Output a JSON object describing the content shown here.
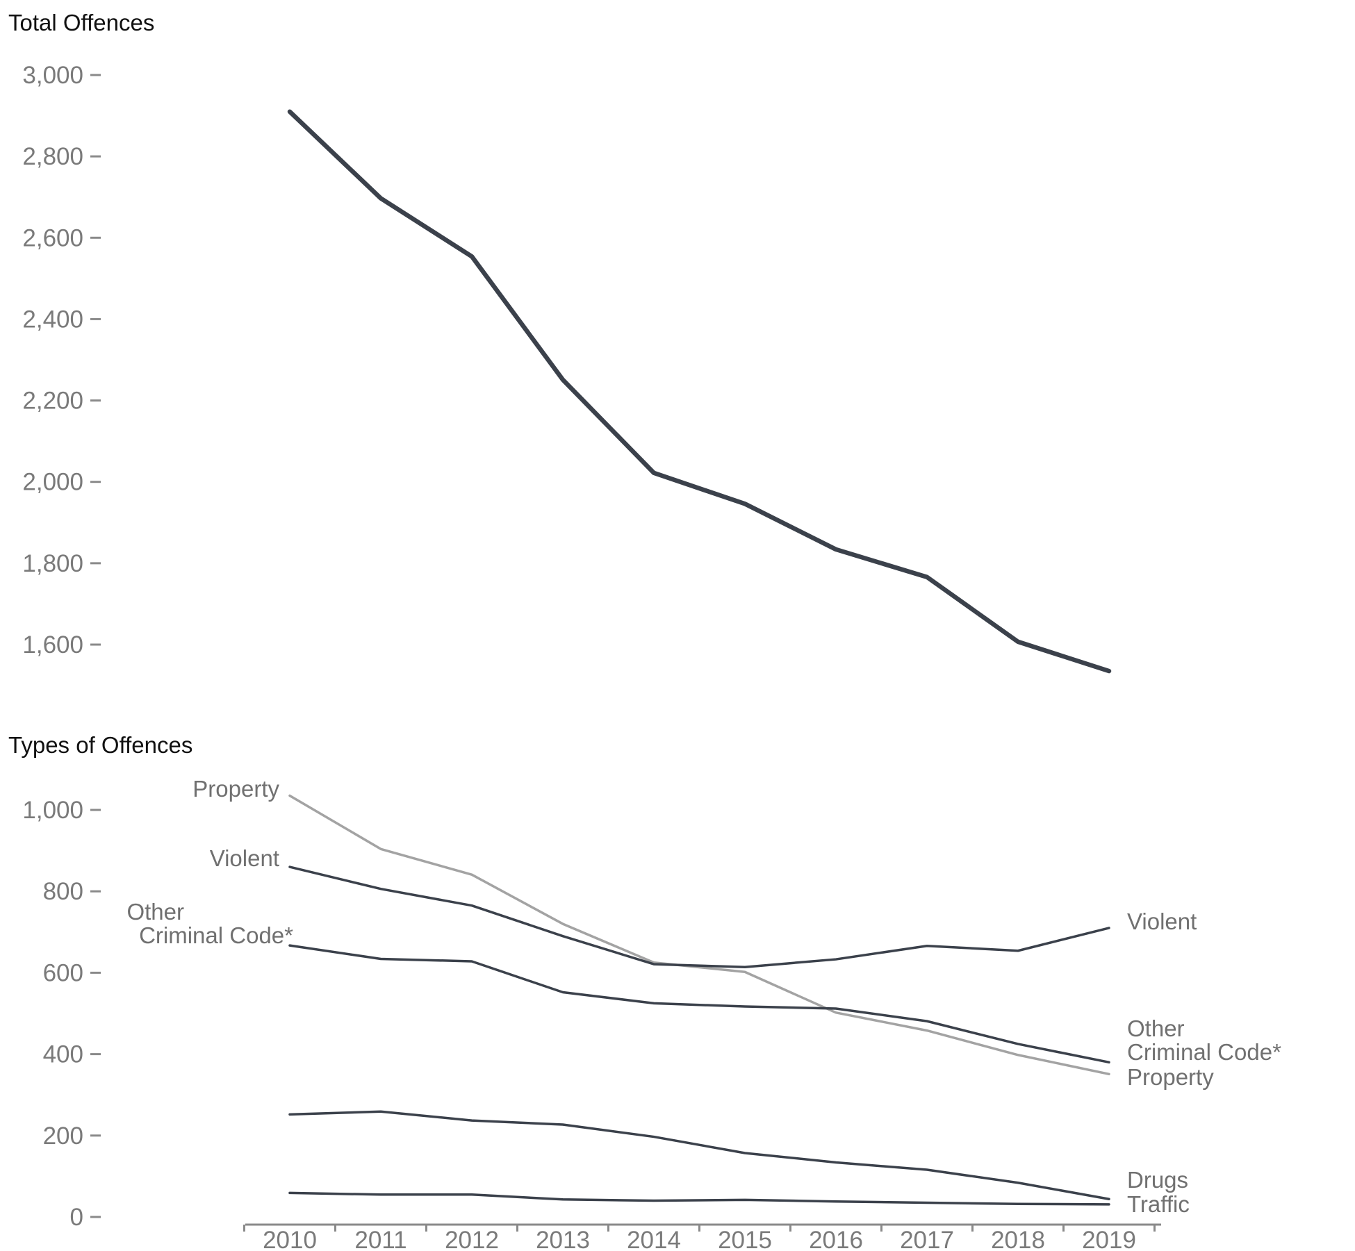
{
  "colors": {
    "dark_line": "#3b414b",
    "light_line": "#a3a3a3",
    "axis": "#8a8a8a",
    "tick_text": "#7a7a7a",
    "label_text": "#707070",
    "title_text": "#111111"
  },
  "chart_data": [
    {
      "type": "line",
      "title": "Total Offences",
      "xlabel": "",
      "ylabel": "",
      "ylim": [
        1600,
        3000
      ],
      "yticks": [
        "3,000",
        "2,800",
        "2,600",
        "2,400",
        "2,200",
        "2,000",
        "1,800",
        "1,600"
      ],
      "ytick_values": [
        3000,
        2800,
        2600,
        2400,
        2200,
        2000,
        1800,
        1600
      ],
      "x": [
        "2010",
        "2011",
        "2012",
        "2013",
        "2014",
        "2015",
        "2016",
        "2017",
        "2018",
        "2019"
      ],
      "series": [
        {
          "name": "Total Offences",
          "values": [
            2910,
            2697,
            2554,
            2251,
            2022,
            1946,
            1834,
            1766,
            1607,
            1535
          ]
        }
      ],
      "grid": false
    },
    {
      "type": "line",
      "title": "Types of Offences",
      "xlabel": "",
      "ylabel": "",
      "ylim": [
        0,
        1000
      ],
      "yticks": [
        "1,000",
        "800",
        "600",
        "400",
        "200",
        "0"
      ],
      "ytick_values": [
        1000,
        800,
        600,
        400,
        200,
        0
      ],
      "x": [
        "2010",
        "2011",
        "2012",
        "2013",
        "2014",
        "2015",
        "2016",
        "2017",
        "2018",
        "2019"
      ],
      "series": [
        {
          "name": "Property",
          "values": [
            1035,
            904,
            841,
            720,
            625,
            602,
            502,
            458,
            398,
            351
          ],
          "style": "light",
          "start_label": [
            "Property"
          ],
          "end_label": [
            "Property"
          ]
        },
        {
          "name": "Violent",
          "values": [
            860,
            806,
            765,
            690,
            621,
            614,
            633,
            666,
            654,
            710
          ],
          "style": "dark",
          "start_label": [
            "Violent"
          ],
          "end_label": [
            "Violent"
          ]
        },
        {
          "name": "Other Criminal Code*",
          "values": [
            667,
            634,
            628,
            552,
            525,
            517,
            512,
            481,
            425,
            380
          ],
          "style": "dark",
          "start_label": [
            "Other",
            "Criminal Code*"
          ],
          "end_label": [
            "Other",
            "Criminal Code*"
          ]
        },
        {
          "name": "Drugs",
          "values": [
            252,
            259,
            237,
            227,
            197,
            157,
            134,
            116,
            84,
            44
          ],
          "style": "dark",
          "start_label": [],
          "end_label": [
            "Drugs"
          ]
        },
        {
          "name": "Traffic",
          "values": [
            59,
            55,
            55,
            43,
            40,
            42,
            38,
            35,
            32,
            31
          ],
          "style": "dark",
          "start_label": [],
          "end_label": [
            "Traffic"
          ]
        }
      ],
      "grid": false
    }
  ]
}
